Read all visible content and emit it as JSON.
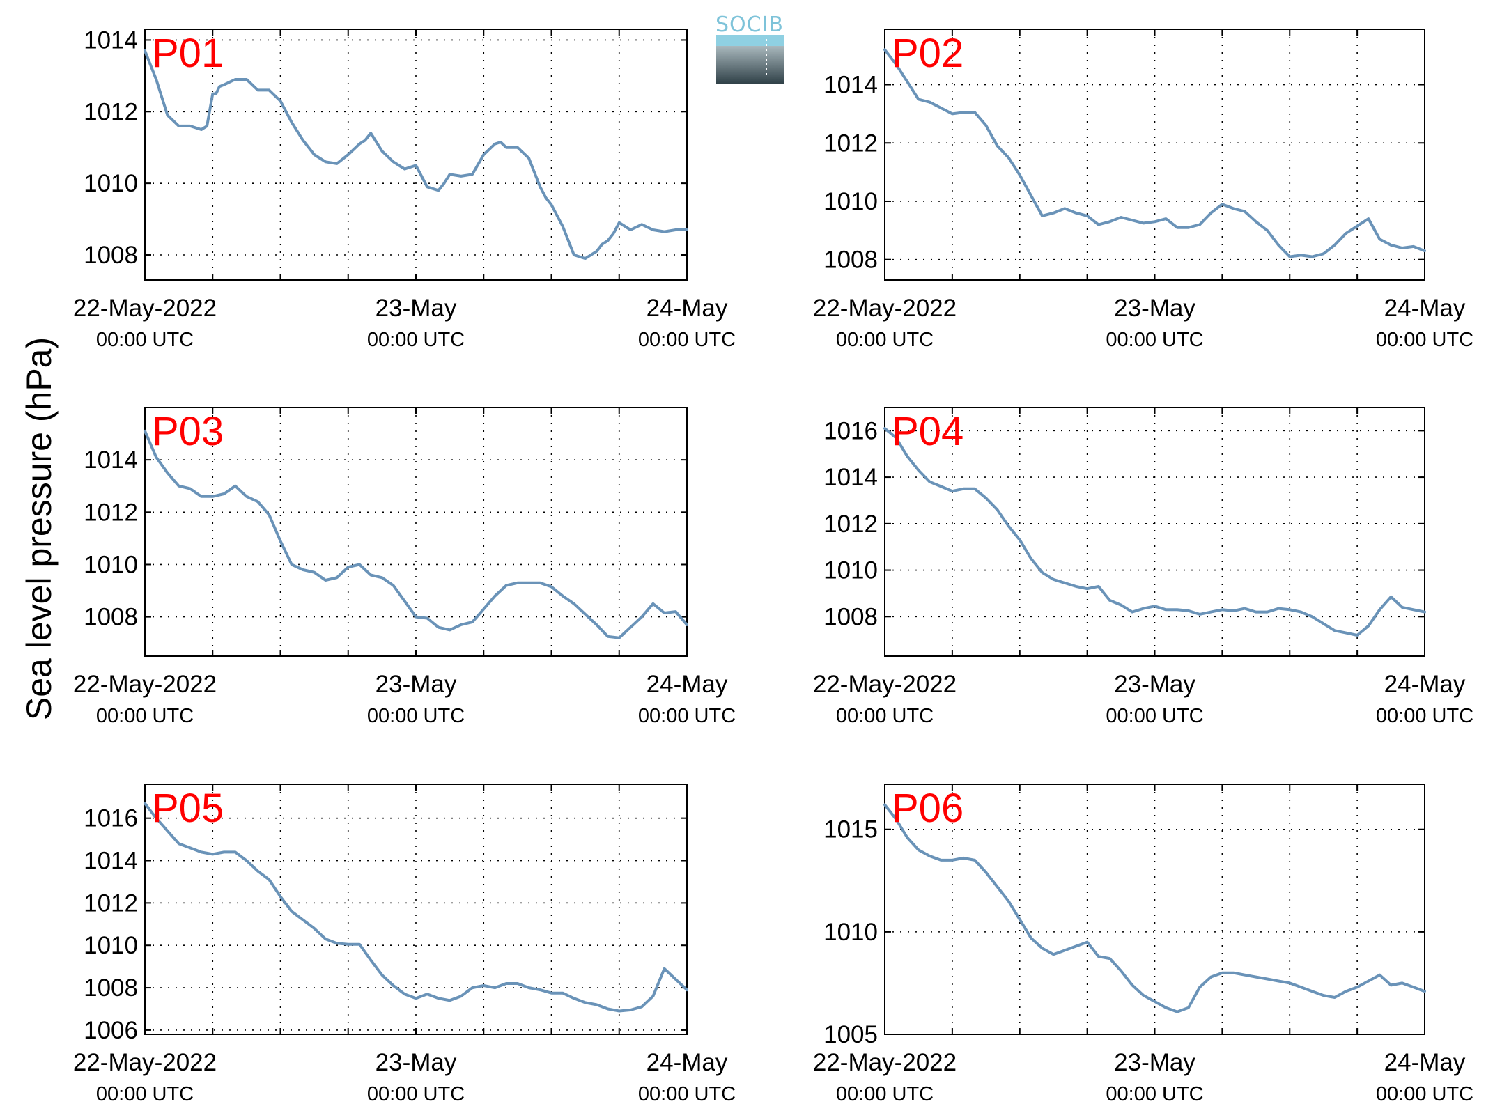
{
  "colors": {
    "line": "#6a93b8",
    "label": "#ff0000"
  },
  "logo": {
    "text": "SOCIB"
  },
  "ylabel": "Sea level pressure (hPa)",
  "chart_data": [
    {
      "type": "line",
      "label": "P01",
      "xlim": [
        0,
        48
      ],
      "ylim": [
        1007.3,
        1014.3
      ],
      "yticks": [
        1008,
        1010,
        1012,
        1014
      ],
      "xticks": [
        {
          "x": 0,
          "top": "22-May-2022",
          "bottom": "00:00 UTC"
        },
        {
          "x": 24,
          "top": "23-May",
          "bottom": "00:00 UTC"
        },
        {
          "x": 48,
          "top": "24-May",
          "bottom": "00:00 UTC"
        }
      ],
      "x": [
        0,
        1,
        2,
        3,
        4,
        5,
        5.5,
        6,
        6.3,
        6.6,
        7,
        8,
        9,
        10,
        11,
        12,
        13,
        14,
        15,
        16,
        17,
        18,
        19,
        19.5,
        20,
        21,
        22,
        23,
        24,
        25,
        26,
        26.5,
        27,
        28,
        29,
        30,
        31,
        31.5,
        32,
        33,
        34,
        35,
        35.5,
        36,
        37,
        38,
        39,
        40,
        40.5,
        41,
        41.5,
        42,
        43,
        44,
        45,
        46,
        47,
        48
      ],
      "y": [
        1013.7,
        1012.9,
        1011.9,
        1011.6,
        1011.6,
        1011.5,
        1011.6,
        1012.5,
        1012.5,
        1012.7,
        1012.75,
        1012.9,
        1012.9,
        1012.6,
        1012.6,
        1012.3,
        1011.7,
        1011.2,
        1010.8,
        1010.6,
        1010.55,
        1010.8,
        1011.1,
        1011.2,
        1011.4,
        1010.9,
        1010.6,
        1010.4,
        1010.5,
        1009.9,
        1009.8,
        1010.0,
        1010.25,
        1010.2,
        1010.25,
        1010.8,
        1011.1,
        1011.15,
        1011.0,
        1011.0,
        1010.7,
        1009.9,
        1009.6,
        1009.4,
        1008.8,
        1008.0,
        1007.9,
        1008.1,
        1008.3,
        1008.4,
        1008.6,
        1008.9,
        1008.7,
        1008.85,
        1008.7,
        1008.65,
        1008.7,
        1008.7
      ]
    },
    {
      "type": "line",
      "label": "P02",
      "xlim": [
        0,
        48
      ],
      "ylim": [
        1007.3,
        1015.9
      ],
      "yticks": [
        1008,
        1010,
        1012,
        1014
      ],
      "xticks": [
        {
          "x": 0,
          "top": "22-May-2022",
          "bottom": "00:00 UTC"
        },
        {
          "x": 24,
          "top": "23-May",
          "bottom": "00:00 UTC"
        },
        {
          "x": 48,
          "top": "24-May",
          "bottom": "00:00 UTC"
        }
      ],
      "x": [
        0,
        1,
        2,
        3,
        4,
        5,
        6,
        7,
        8,
        9,
        10,
        11,
        12,
        13,
        14,
        15,
        16,
        17,
        18,
        19,
        20,
        21,
        22,
        23,
        24,
        25,
        26,
        27,
        28,
        29,
        30,
        31,
        32,
        33,
        34,
        35,
        36,
        37,
        38,
        39,
        40,
        41,
        42,
        43,
        44,
        45,
        46,
        47,
        48
      ],
      "y": [
        1015.2,
        1014.7,
        1014.1,
        1013.5,
        1013.4,
        1013.2,
        1013.0,
        1013.05,
        1013.05,
        1012.6,
        1011.9,
        1011.5,
        1010.9,
        1010.2,
        1009.5,
        1009.6,
        1009.75,
        1009.6,
        1009.5,
        1009.2,
        1009.3,
        1009.45,
        1009.35,
        1009.25,
        1009.3,
        1009.4,
        1009.1,
        1009.1,
        1009.2,
        1009.6,
        1009.9,
        1009.75,
        1009.65,
        1009.3,
        1009.0,
        1008.5,
        1008.1,
        1008.15,
        1008.1,
        1008.2,
        1008.5,
        1008.9,
        1009.15,
        1009.4,
        1008.7,
        1008.5,
        1008.4,
        1008.45,
        1008.3
      ]
    },
    {
      "type": "line",
      "label": "P03",
      "xlim": [
        0,
        48
      ],
      "ylim": [
        1006.5,
        1016.0
      ],
      "yticks": [
        1008,
        1010,
        1012,
        1014
      ],
      "xticks": [
        {
          "x": 0,
          "top": "22-May-2022",
          "bottom": "00:00 UTC"
        },
        {
          "x": 24,
          "top": "23-May",
          "bottom": "00:00 UTC"
        },
        {
          "x": 48,
          "top": "24-May",
          "bottom": "00:00 UTC"
        }
      ],
      "x": [
        0,
        1,
        2,
        3,
        4,
        5,
        6,
        7,
        8,
        9,
        10,
        11,
        12,
        13,
        14,
        15,
        16,
        17,
        18,
        19,
        20,
        21,
        22,
        23,
        24,
        25,
        26,
        27,
        28,
        29,
        30,
        31,
        32,
        33,
        34,
        35,
        36,
        37,
        38,
        39,
        40,
        41,
        42,
        43,
        44,
        45,
        46,
        47,
        48
      ],
      "y": [
        1015.1,
        1014.1,
        1013.5,
        1013.0,
        1012.9,
        1012.6,
        1012.6,
        1012.7,
        1013.0,
        1012.6,
        1012.4,
        1011.9,
        1010.9,
        1010.0,
        1009.8,
        1009.7,
        1009.4,
        1009.5,
        1009.9,
        1010.0,
        1009.6,
        1009.5,
        1009.2,
        1008.6,
        1008.0,
        1007.95,
        1007.6,
        1007.5,
        1007.7,
        1007.8,
        1008.3,
        1008.8,
        1009.2,
        1009.3,
        1009.3,
        1009.3,
        1009.15,
        1008.8,
        1008.5,
        1008.1,
        1007.7,
        1007.25,
        1007.2,
        1007.6,
        1008.0,
        1008.5,
        1008.15,
        1008.2,
        1007.7
      ]
    },
    {
      "type": "line",
      "label": "P04",
      "xlim": [
        0,
        48
      ],
      "ylim": [
        1006.3,
        1017.0
      ],
      "yticks": [
        1008,
        1010,
        1012,
        1014,
        1016
      ],
      "xticks": [
        {
          "x": 0,
          "top": "22-May-2022",
          "bottom": "00:00 UTC"
        },
        {
          "x": 24,
          "top": "23-May",
          "bottom": "00:00 UTC"
        },
        {
          "x": 48,
          "top": "24-May",
          "bottom": "00:00 UTC"
        }
      ],
      "x": [
        0,
        1,
        2,
        3,
        4,
        5,
        6,
        7,
        8,
        9,
        10,
        11,
        12,
        13,
        14,
        15,
        16,
        17,
        18,
        19,
        20,
        21,
        22,
        23,
        24,
        25,
        26,
        27,
        28,
        29,
        30,
        31,
        32,
        33,
        34,
        35,
        36,
        37,
        38,
        39,
        40,
        41,
        42,
        43,
        44,
        45,
        46,
        47,
        48
      ],
      "y": [
        1016.1,
        1015.7,
        1014.9,
        1014.3,
        1013.8,
        1013.6,
        1013.4,
        1013.5,
        1013.5,
        1013.1,
        1012.6,
        1011.9,
        1011.3,
        1010.5,
        1009.9,
        1009.6,
        1009.45,
        1009.3,
        1009.2,
        1009.3,
        1008.7,
        1008.5,
        1008.2,
        1008.35,
        1008.45,
        1008.3,
        1008.3,
        1008.25,
        1008.1,
        1008.2,
        1008.3,
        1008.25,
        1008.35,
        1008.2,
        1008.2,
        1008.35,
        1008.3,
        1008.2,
        1008.0,
        1007.7,
        1007.4,
        1007.3,
        1007.2,
        1007.6,
        1008.3,
        1008.85,
        1008.4,
        1008.3,
        1008.2
      ]
    },
    {
      "type": "line",
      "label": "P05",
      "xlim": [
        0,
        48
      ],
      "ylim": [
        1005.8,
        1017.6
      ],
      "yticks": [
        1006,
        1008,
        1010,
        1012,
        1014,
        1016
      ],
      "xticks": [
        {
          "x": 0,
          "top": "22-May-2022",
          "bottom": "00:00 UTC"
        },
        {
          "x": 24,
          "top": "23-May",
          "bottom": "00:00 UTC"
        },
        {
          "x": 48,
          "top": "24-May",
          "bottom": "00:00 UTC"
        }
      ],
      "x": [
        0,
        1,
        2,
        3,
        4,
        5,
        6,
        7,
        8,
        9,
        10,
        11,
        12,
        13,
        14,
        15,
        16,
        17,
        18,
        19,
        20,
        21,
        22,
        23,
        24,
        25,
        26,
        27,
        28,
        29,
        30,
        31,
        32,
        33,
        34,
        35,
        36,
        37,
        38,
        39,
        40,
        41,
        42,
        43,
        44,
        45,
        46,
        47,
        48
      ],
      "y": [
        1016.7,
        1016.0,
        1015.4,
        1014.8,
        1014.6,
        1014.4,
        1014.3,
        1014.4,
        1014.4,
        1014.0,
        1013.5,
        1013.1,
        1012.3,
        1011.6,
        1011.2,
        1010.8,
        1010.3,
        1010.1,
        1010.05,
        1010.05,
        1009.3,
        1008.6,
        1008.1,
        1007.7,
        1007.5,
        1007.7,
        1007.5,
        1007.4,
        1007.6,
        1008.0,
        1008.1,
        1008.0,
        1008.2,
        1008.2,
        1008.0,
        1007.9,
        1007.75,
        1007.75,
        1007.5,
        1007.3,
        1007.2,
        1007.0,
        1006.9,
        1006.95,
        1007.1,
        1007.6,
        1008.9,
        1008.4,
        1007.9
      ]
    },
    {
      "type": "line",
      "label": "P06",
      "xlim": [
        0,
        48
      ],
      "ylim": [
        1005.0,
        1017.2
      ],
      "yticks": [
        1005,
        1010,
        1015
      ],
      "xticks": [
        {
          "x": 0,
          "top": "22-May-2022",
          "bottom": "00:00 UTC"
        },
        {
          "x": 24,
          "top": "23-May",
          "bottom": "00:00 UTC"
        },
        {
          "x": 48,
          "top": "24-May",
          "bottom": "00:00 UTC"
        }
      ],
      "x": [
        0,
        1,
        2,
        3,
        4,
        5,
        6,
        7,
        8,
        9,
        10,
        11,
        12,
        13,
        14,
        15,
        16,
        17,
        18,
        19,
        20,
        21,
        22,
        23,
        24,
        25,
        26,
        27,
        28,
        29,
        30,
        31,
        32,
        33,
        34,
        35,
        36,
        37,
        38,
        39,
        40,
        41,
        42,
        43,
        44,
        45,
        46,
        47,
        48
      ],
      "y": [
        1016.2,
        1015.5,
        1014.6,
        1014.0,
        1013.7,
        1013.5,
        1013.5,
        1013.6,
        1013.5,
        1012.9,
        1012.2,
        1011.5,
        1010.6,
        1009.7,
        1009.2,
        1008.9,
        1009.1,
        1009.3,
        1009.5,
        1008.8,
        1008.7,
        1008.1,
        1007.4,
        1006.9,
        1006.6,
        1006.3,
        1006.1,
        1006.3,
        1007.3,
        1007.8,
        1008.0,
        1008.0,
        1007.9,
        1007.8,
        1007.7,
        1007.6,
        1007.5,
        1007.3,
        1007.1,
        1006.9,
        1006.8,
        1007.1,
        1007.3,
        1007.6,
        1007.9,
        1007.4,
        1007.5,
        1007.3,
        1007.1
      ]
    }
  ]
}
